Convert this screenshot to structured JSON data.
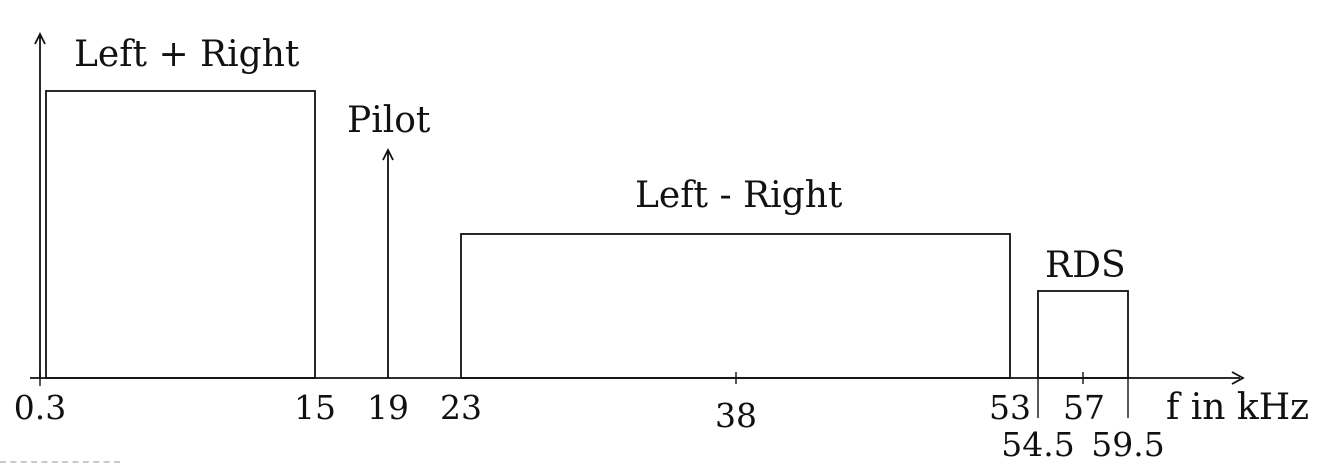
{
  "diagram": {
    "band_labels": {
      "left_plus_right": "Left + Right",
      "pilot": "Pilot",
      "left_minus_right": "Left - Right",
      "rds": "RDS"
    },
    "axis_label": "f in kHz",
    "ticks": {
      "t0_3": "0.3",
      "t15": "15",
      "t19": "19",
      "t23": "23",
      "t38": "38",
      "t53": "53",
      "t54_5": "54.5",
      "t57": "57",
      "t59_5": "59.5"
    }
  }
}
